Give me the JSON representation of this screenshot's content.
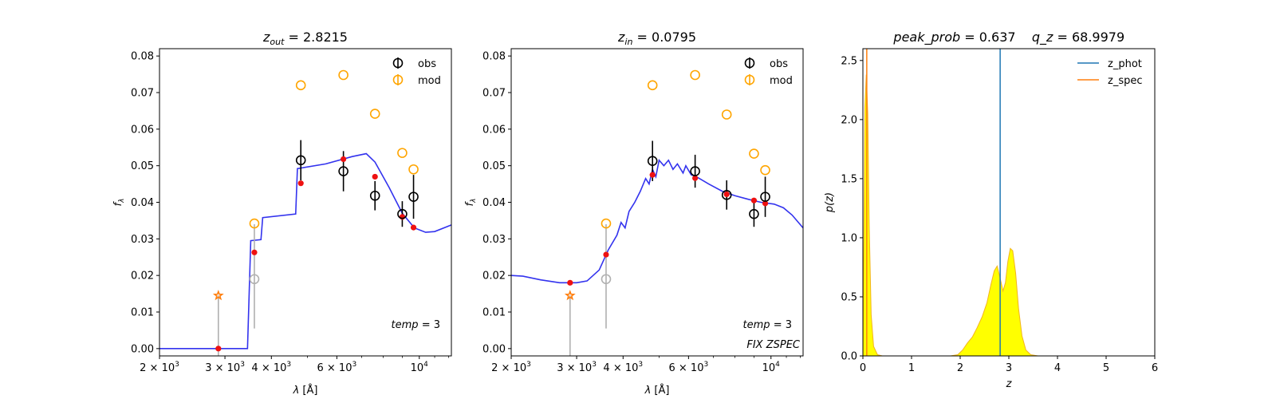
{
  "chart_data": [
    {
      "type": "scatter",
      "title": {
        "var": "z",
        "sub": "out",
        "value": "2.8215"
      },
      "xlabel": "λ [Å]",
      "ylabel": "f",
      "ylabel_sub": "λ",
      "x_scale": "log",
      "xlim": [
        2000,
        12200
      ],
      "ylim": [
        -0.002,
        0.082
      ],
      "x_ticks": [
        {
          "value": 2000,
          "base": "2 × 10",
          "exp": "3"
        },
        {
          "value": 3000,
          "base": "3 × 10",
          "exp": "3"
        },
        {
          "value": 4000,
          "base": "4 × 10",
          "exp": "3"
        },
        {
          "value": 6000,
          "base": "6 × 10",
          "exp": "3"
        },
        {
          "value": 10000,
          "base": "10",
          "exp": "4"
        }
      ],
      "y_ticks": [
        "0.00",
        "0.01",
        "0.02",
        "0.03",
        "0.04",
        "0.05",
        "0.06",
        "0.07",
        "0.08"
      ],
      "legend": {
        "position": "top-right",
        "entries": [
          "obs",
          "mod"
        ]
      },
      "annotations": [
        "temp = 3"
      ],
      "obs": [
        {
          "x": 4800,
          "y": 0.0515,
          "err": 0.0055
        },
        {
          "x": 6250,
          "y": 0.0485,
          "err": 0.0055
        },
        {
          "x": 7600,
          "y": 0.0418,
          "err": 0.004
        },
        {
          "x": 9000,
          "y": 0.0368,
          "err": 0.0035
        },
        {
          "x": 9650,
          "y": 0.0415,
          "err": 0.006
        }
      ],
      "obs_faint": [
        {
          "x": 3600,
          "y": 0.019,
          "err_low": 0.0135,
          "err_high": 0.015
        }
      ],
      "upper_limit": [
        {
          "x": 2880,
          "y": 0.0145,
          "lower": -0.002
        }
      ],
      "mod": [
        {
          "x": 3600,
          "y": 0.0342
        },
        {
          "x": 4800,
          "y": 0.072
        },
        {
          "x": 6250,
          "y": 0.0748
        },
        {
          "x": 7600,
          "y": 0.0642
        },
        {
          "x": 9000,
          "y": 0.0535
        },
        {
          "x": 9650,
          "y": 0.049
        }
      ],
      "template_points": [
        {
          "x": 2880,
          "y": 0.0
        },
        {
          "x": 3600,
          "y": 0.0263
        },
        {
          "x": 4800,
          "y": 0.0452
        },
        {
          "x": 6250,
          "y": 0.0518
        },
        {
          "x": 7600,
          "y": 0.047
        },
        {
          "x": 9000,
          "y": 0.036
        },
        {
          "x": 9650,
          "y": 0.0331
        }
      ],
      "template_curve": [
        [
          2000,
          0.0
        ],
        [
          3450,
          0.0
        ],
        [
          3520,
          0.0295
        ],
        [
          3750,
          0.0298
        ],
        [
          3790,
          0.0358
        ],
        [
          4650,
          0.0368
        ],
        [
          4700,
          0.0492
        ],
        [
          5600,
          0.0505
        ],
        [
          6600,
          0.0525
        ],
        [
          7200,
          0.0533
        ],
        [
          7600,
          0.051
        ],
        [
          8300,
          0.044
        ],
        [
          9000,
          0.037
        ],
        [
          9700,
          0.033
        ],
        [
          10400,
          0.0318
        ],
        [
          11000,
          0.032
        ],
        [
          12200,
          0.0338
        ]
      ]
    },
    {
      "type": "scatter",
      "title": {
        "var": "z",
        "sub": "in",
        "value": "0.0795"
      },
      "xlabel": "λ [Å]",
      "ylabel": "f",
      "ylabel_sub": "λ",
      "x_scale": "log",
      "xlim": [
        2000,
        12200
      ],
      "ylim": [
        -0.002,
        0.082
      ],
      "x_ticks": [
        {
          "value": 2000,
          "base": "2 × 10",
          "exp": "3"
        },
        {
          "value": 3000,
          "base": "3 × 10",
          "exp": "3"
        },
        {
          "value": 4000,
          "base": "4 × 10",
          "exp": "3"
        },
        {
          "value": 6000,
          "base": "6 × 10",
          "exp": "3"
        },
        {
          "value": 10000,
          "base": "10",
          "exp": "4"
        }
      ],
      "y_ticks": [
        "0.00",
        "0.01",
        "0.02",
        "0.03",
        "0.04",
        "0.05",
        "0.06",
        "0.07",
        "0.08"
      ],
      "legend": {
        "position": "top-right",
        "entries": [
          "obs",
          "mod"
        ]
      },
      "annotations": [
        "temp = 3",
        "FIX ZSPEC"
      ],
      "obs": [
        {
          "x": 4800,
          "y": 0.0513,
          "err": 0.0055
        },
        {
          "x": 6250,
          "y": 0.0485,
          "err": 0.0045
        },
        {
          "x": 7600,
          "y": 0.042,
          "err": 0.004
        },
        {
          "x": 9000,
          "y": 0.0368,
          "err": 0.0035
        },
        {
          "x": 9650,
          "y": 0.0415,
          "err": 0.0055
        }
      ],
      "obs_faint": [
        {
          "x": 3600,
          "y": 0.019,
          "err_low": 0.0135,
          "err_high": 0.015
        }
      ],
      "upper_limit": [
        {
          "x": 2880,
          "y": 0.0145,
          "lower": -0.002
        }
      ],
      "mod": [
        {
          "x": 3600,
          "y": 0.0342
        },
        {
          "x": 4800,
          "y": 0.072
        },
        {
          "x": 6250,
          "y": 0.0748
        },
        {
          "x": 7600,
          "y": 0.064
        },
        {
          "x": 9000,
          "y": 0.0533
        },
        {
          "x": 9650,
          "y": 0.0488
        }
      ],
      "template_points": [
        {
          "x": 2880,
          "y": 0.018
        },
        {
          "x": 3600,
          "y": 0.0257
        },
        {
          "x": 4800,
          "y": 0.0475
        },
        {
          "x": 6250,
          "y": 0.0466
        },
        {
          "x": 7600,
          "y": 0.0422
        },
        {
          "x": 9000,
          "y": 0.0405
        },
        {
          "x": 9650,
          "y": 0.0397
        }
      ],
      "template_curve": [
        [
          2000,
          0.02
        ],
        [
          2150,
          0.0198
        ],
        [
          2400,
          0.0188
        ],
        [
          2700,
          0.018
        ],
        [
          3000,
          0.018
        ],
        [
          3200,
          0.0185
        ],
        [
          3450,
          0.0215
        ],
        [
          3650,
          0.027
        ],
        [
          3850,
          0.031
        ],
        [
          3950,
          0.0345
        ],
        [
          4050,
          0.033
        ],
        [
          4150,
          0.0375
        ],
        [
          4300,
          0.04
        ],
        [
          4450,
          0.043
        ],
        [
          4600,
          0.0465
        ],
        [
          4700,
          0.045
        ],
        [
          4800,
          0.049
        ],
        [
          4900,
          0.047
        ],
        [
          5000,
          0.0515
        ],
        [
          5150,
          0.05
        ],
        [
          5300,
          0.0515
        ],
        [
          5450,
          0.049
        ],
        [
          5600,
          0.0505
        ],
        [
          5800,
          0.048
        ],
        [
          5900,
          0.05
        ],
        [
          6100,
          0.0475
        ],
        [
          6300,
          0.047
        ],
        [
          6800,
          0.045
        ],
        [
          7400,
          0.043
        ],
        [
          8000,
          0.0418
        ],
        [
          8700,
          0.0408
        ],
        [
          9400,
          0.04
        ],
        [
          10200,
          0.0395
        ],
        [
          10800,
          0.0385
        ],
        [
          11400,
          0.0365
        ],
        [
          12200,
          0.033
        ]
      ]
    },
    {
      "type": "area",
      "title": {
        "left_var": "peak_prob",
        "left_value": "0.637",
        "right_var": "q_z",
        "right_value": "68.9979"
      },
      "xlabel": "z",
      "ylabel": "p(z)",
      "xlim": [
        0,
        6
      ],
      "ylim": [
        0,
        2.6
      ],
      "x_ticks": [
        "0",
        "1",
        "2",
        "3",
        "4",
        "5",
        "6"
      ],
      "y_ticks": [
        "0.0",
        "0.5",
        "1.0",
        "1.5",
        "2.0",
        "2.5"
      ],
      "legend": {
        "position": "top-right",
        "entries": [
          "z_phot",
          "z_spec"
        ]
      },
      "z_phot": 2.8215,
      "z_spec": 0.0795,
      "colors": {
        "z_phot": "#1f77b4",
        "z_spec": "#ff7f0e",
        "fill": "#ffff00",
        "fill_edge": "#f2b420"
      },
      "pdf": [
        [
          0.0,
          0.0
        ],
        [
          0.02,
          1.0
        ],
        [
          0.04,
          2.1
        ],
        [
          0.07,
          2.38
        ],
        [
          0.1,
          2.05
        ],
        [
          0.13,
          1.1
        ],
        [
          0.17,
          0.35
        ],
        [
          0.22,
          0.08
        ],
        [
          0.3,
          0.01
        ],
        [
          0.4,
          0.0
        ],
        [
          1.8,
          0.0
        ],
        [
          1.95,
          0.01
        ],
        [
          2.05,
          0.05
        ],
        [
          2.15,
          0.11
        ],
        [
          2.25,
          0.16
        ],
        [
          2.35,
          0.24
        ],
        [
          2.45,
          0.33
        ],
        [
          2.55,
          0.45
        ],
        [
          2.63,
          0.6
        ],
        [
          2.7,
          0.72
        ],
        [
          2.76,
          0.76
        ],
        [
          2.82,
          0.66
        ],
        [
          2.88,
          0.55
        ],
        [
          2.93,
          0.62
        ],
        [
          2.98,
          0.8
        ],
        [
          3.03,
          0.91
        ],
        [
          3.08,
          0.89
        ],
        [
          3.14,
          0.7
        ],
        [
          3.2,
          0.4
        ],
        [
          3.27,
          0.17
        ],
        [
          3.35,
          0.05
        ],
        [
          3.45,
          0.01
        ],
        [
          3.6,
          0.0
        ],
        [
          5.0,
          0.0
        ]
      ]
    }
  ]
}
